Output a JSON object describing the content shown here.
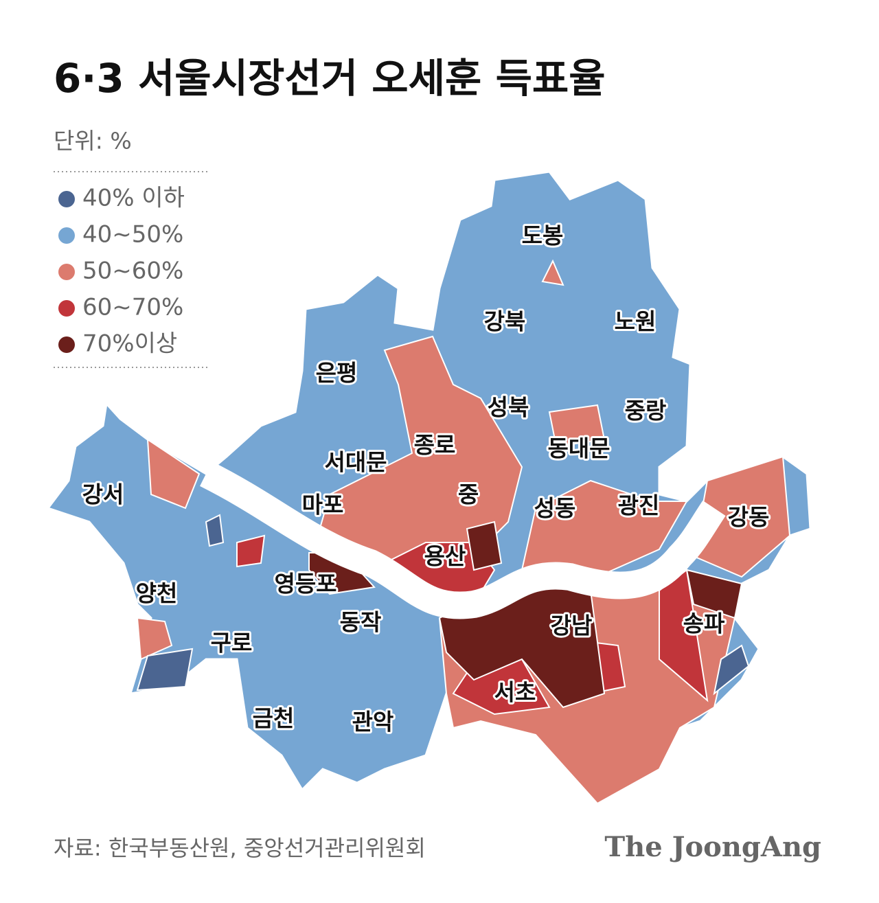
{
  "header": {
    "title": "6·3 서울시장선거 오세훈 득표율",
    "unit": "단위: %"
  },
  "legend": [
    {
      "label": "40% 이하",
      "color": "#4b6591"
    },
    {
      "label": "40~50%",
      "color": "#76a6d3"
    },
    {
      "label": "50~60%",
      "color": "#dc7b6e"
    },
    {
      "label": "60~70%",
      "color": "#c1353a"
    },
    {
      "label": "70%이상",
      "color": "#6b1f1b"
    }
  ],
  "districts": [
    "도봉",
    "강북",
    "노원",
    "은평",
    "성북",
    "중랑",
    "종로",
    "동대문",
    "서대문",
    "강서",
    "마포",
    "중",
    "성동",
    "광진",
    "강동",
    "용산",
    "영등포",
    "양천",
    "송파",
    "강남",
    "동작",
    "구로",
    "서초",
    "금천",
    "관악"
  ],
  "footer": {
    "source": "자료: 한국부동산원, 중앙선거관리위원회",
    "brand": "The JoongAng"
  }
}
